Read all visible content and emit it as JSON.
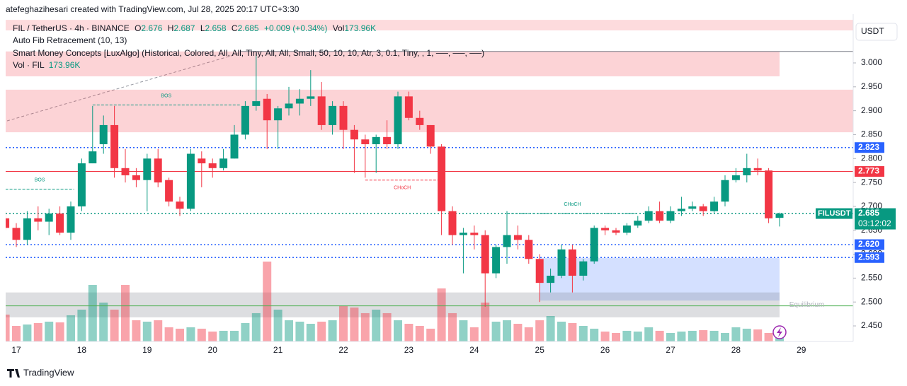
{
  "header": {
    "caption": "atefeghazihesari created with TradingView.com, Jul 28, 2025 20:17 UTC+3:30",
    "currency": "USDT",
    "footer": "TradingView"
  },
  "legend": {
    "symbol": "FIL / TetherUS · 4h · BINANCE",
    "o_label": "O",
    "h_label": "H",
    "l_label": "L",
    "c_label": "C",
    "change": "+0.009 (+0.34%)",
    "vol_label": "Vol",
    "vol_value": "173.96K",
    "indicators": [
      "Auto Fib Retracement (10, 13)",
      "Smart Money Concepts [LuxAlgo] (Historical, Colored, All, All, Tiny, All, All, Small, 50, 10, 10, Atr, 3, 0.1, Tiny, , 1, ──, ──, ──)"
    ],
    "vol_indicator": "Vol · FIL",
    "vol_indicator_value": "173.96K"
  },
  "chart_data": {
    "type": "candlestick",
    "symbol_tag": "FILUSDT",
    "countdown": "03:12:02",
    "categories": [
      null,
      "17",
      null,
      null,
      null,
      null,
      null,
      "18",
      null,
      null,
      null,
      null,
      null,
      "19",
      null,
      null,
      null,
      null,
      null,
      "20",
      null,
      null,
      null,
      null,
      null,
      "21",
      null,
      null,
      null,
      null,
      null,
      "22",
      null,
      null,
      null,
      null,
      null,
      "23",
      null,
      null,
      null,
      null,
      null,
      "24",
      null,
      null,
      null,
      null,
      null,
      "25",
      null,
      null,
      null,
      null,
      null,
      "26",
      null,
      null,
      null,
      null,
      null,
      "27",
      null,
      null,
      null,
      null,
      null,
      "28",
      null,
      null,
      null,
      null,
      null,
      "29"
    ],
    "open": [
      2.675,
      2.655,
      2.63,
      2.675,
      2.668,
      2.685,
      2.645,
      2.7,
      2.79,
      2.83,
      2.87,
      2.78,
      2.765,
      2.755,
      2.8,
      2.755,
      2.71,
      2.695,
      2.8,
      2.79,
      2.78,
      2.8,
      2.85,
      2.91,
      2.925,
      2.88,
      2.905,
      2.915,
      2.925,
      2.93,
      2.87,
      2.91,
      2.86,
      2.84,
      2.83,
      2.845,
      2.83,
      2.93,
      2.885,
      2.87,
      2.825,
      2.69,
      2.64,
      2.645,
      2.64,
      2.56,
      2.615,
      2.64,
      2.63,
      2.59,
      2.54,
      2.555,
      2.61,
      2.555,
      2.585,
      2.655,
      2.65,
      2.645,
      2.66,
      2.67,
      2.69,
      2.67,
      2.69,
      2.695,
      2.7,
      2.69,
      2.71,
      2.755,
      2.765,
      2.78,
      2.775,
      2.676,
      null,
      null
    ],
    "high": [
      2.69,
      2.665,
      2.69,
      2.7,
      2.695,
      2.7,
      2.71,
      2.8,
      2.91,
      2.89,
      2.91,
      2.82,
      2.78,
      2.81,
      2.82,
      2.76,
      2.72,
      2.82,
      2.815,
      2.8,
      2.82,
      2.87,
      2.92,
      3.02,
      2.935,
      2.91,
      2.95,
      2.945,
      2.985,
      2.96,
      2.92,
      2.92,
      2.87,
      2.85,
      2.85,
      2.88,
      2.94,
      2.94,
      2.9,
      2.87,
      2.83,
      2.7,
      2.655,
      2.66,
      2.65,
      2.62,
      2.69,
      2.66,
      2.64,
      2.6,
      2.57,
      2.62,
      2.62,
      2.59,
      2.66,
      2.66,
      2.655,
      2.665,
      2.68,
      2.7,
      2.71,
      2.7,
      2.72,
      2.71,
      2.705,
      2.72,
      2.765,
      2.78,
      2.81,
      2.8,
      2.78,
      2.687,
      null,
      null
    ],
    "low": [
      2.65,
      2.615,
      2.62,
      2.65,
      2.64,
      2.64,
      2.63,
      2.69,
      2.79,
      2.81,
      2.76,
      2.75,
      2.74,
      2.69,
      2.74,
      2.7,
      2.68,
      2.69,
      2.74,
      2.76,
      2.775,
      2.8,
      2.84,
      2.9,
      2.82,
      2.82,
      2.89,
      2.89,
      2.91,
      2.86,
      2.85,
      2.82,
      2.77,
      2.76,
      2.77,
      2.82,
      2.82,
      2.88,
      2.86,
      2.81,
      2.64,
      2.62,
      2.56,
      2.61,
      2.49,
      2.55,
      2.58,
      2.61,
      2.58,
      2.5,
      2.52,
      2.55,
      2.52,
      2.545,
      2.58,
      2.64,
      2.64,
      2.64,
      2.655,
      2.665,
      2.665,
      2.665,
      2.68,
      2.69,
      2.68,
      2.685,
      2.7,
      2.75,
      2.75,
      2.765,
      2.665,
      2.658,
      null,
      null
    ],
    "close": [
      2.655,
      2.63,
      2.675,
      2.668,
      2.685,
      2.645,
      2.7,
      2.79,
      2.815,
      2.87,
      2.78,
      2.765,
      2.755,
      2.8,
      2.75,
      2.71,
      2.695,
      2.81,
      2.79,
      2.78,
      2.8,
      2.85,
      2.91,
      2.92,
      2.88,
      2.905,
      2.915,
      2.925,
      2.93,
      2.87,
      2.91,
      2.86,
      2.84,
      2.83,
      2.845,
      2.83,
      2.93,
      2.885,
      2.87,
      2.825,
      2.69,
      2.64,
      2.645,
      2.64,
      2.56,
      2.615,
      2.64,
      2.63,
      2.59,
      2.54,
      2.555,
      2.61,
      2.555,
      2.585,
      2.655,
      2.65,
      2.645,
      2.66,
      2.67,
      2.69,
      2.67,
      2.69,
      2.695,
      2.7,
      2.69,
      2.71,
      2.755,
      2.765,
      2.78,
      2.775,
      2.675,
      2.685,
      null,
      null
    ],
    "volume": [
      328000,
      190000,
      207000,
      225000,
      242000,
      233000,
      320000,
      389000,
      691000,
      475000,
      389000,
      691000,
      259000,
      242000,
      259000,
      173000,
      156000,
      173000,
      156000,
      121000,
      130000,
      130000,
      225000,
      346000,
      976000,
      389000,
      259000,
      242000,
      216000,
      242000,
      259000,
      432000,
      415000,
      346000,
      389000,
      346000,
      259000,
      216000,
      190000,
      156000,
      648000,
      346000,
      259000,
      173000,
      475000,
      242000,
      259000,
      216000,
      173000,
      259000,
      311000,
      242000,
      225000,
      190000,
      156000,
      121000,
      104000,
      130000,
      121000,
      173000,
      130000,
      104000,
      121000,
      130000,
      138000,
      130000,
      104000,
      173000,
      156000,
      147000,
      104000,
      173960,
      null,
      null
    ],
    "ylim": [
      2.4175,
      3.102
    ],
    "volume_lim": [
      0,
      4000000
    ],
    "yticks": [
      {
        "value": 2.45,
        "label": "2.450"
      },
      {
        "value": 2.5,
        "label": "2.500"
      },
      {
        "value": 2.55,
        "label": "2.550"
      },
      {
        "value": 2.6,
        "label": "2.600"
      },
      {
        "value": 2.65,
        "label": "2.650"
      },
      {
        "value": 2.7,
        "label": "2.700"
      },
      {
        "value": 2.75,
        "label": "2.750"
      },
      {
        "value": 2.8,
        "label": "2.800"
      },
      {
        "value": 2.85,
        "label": "2.850"
      },
      {
        "value": 2.9,
        "label": "2.900"
      },
      {
        "value": 2.95,
        "label": "2.950"
      },
      {
        "value": 3.0,
        "label": "3.000"
      }
    ],
    "grid": false,
    "up_color": "#089981",
    "down_color": "#f23645",
    "volume_up_color": "rgba(8,153,129,0.45)",
    "volume_down_color": "rgba(242,54,69,0.45)",
    "zones": [
      {
        "y0": 3.068,
        "y1": 3.09,
        "x0": 0,
        "x1": 78,
        "color": "rgba(242,54,69,0.18)"
      },
      {
        "y0": 2.972,
        "y1": 3.024,
        "x0": 0,
        "x1": 71,
        "color": "rgba(242,54,69,0.22)"
      },
      {
        "y0": 2.855,
        "y1": 2.944,
        "x0": 0,
        "x1": 78,
        "color": "rgba(242,54,69,0.22)"
      },
      {
        "y0": 2.503,
        "y1": 2.592,
        "x0": 49,
        "x1": 71,
        "color": "rgba(41,98,255,0.2)"
      },
      {
        "y0": 2.468,
        "y1": 2.52,
        "x0": 0,
        "x1": 71,
        "color": "rgba(120,123,134,0.25)"
      }
    ],
    "hlines": [
      {
        "value": 2.823,
        "label": "2.823",
        "color": "#2962ff",
        "style": "dotted"
      },
      {
        "value": 2.773,
        "label": "2.773",
        "color": "#f23645",
        "style": "solid"
      },
      {
        "value": 2.62,
        "label": "2.620",
        "color": "#2962ff",
        "style": "dotted"
      },
      {
        "value": 2.593,
        "label": "2.593",
        "color": "#2962ff",
        "style": "dotted"
      },
      {
        "value": 2.685,
        "label": "2.685",
        "color": "#089981",
        "style": "dotted",
        "current": true
      },
      {
        "value": 2.492,
        "color": "#4caf50",
        "style": "solid"
      },
      {
        "value": 3.024,
        "color": "#787b86",
        "style": "solid",
        "x0": 21.5
      }
    ],
    "annotations": [
      {
        "text": "BOS",
        "x0": 8,
        "x1": 21.5,
        "y": 2.912,
        "color": "#089981",
        "placement": "above"
      },
      {
        "text": "BOS",
        "x0": 0,
        "x1": 6.3,
        "y": 2.736,
        "color": "#089981",
        "placement": "above"
      },
      {
        "text": "CHoCH",
        "x0": 33,
        "x1": 39.8,
        "y": 2.755,
        "color": "#f23645",
        "placement": "below"
      },
      {
        "text": "CHoCH",
        "x0": 46,
        "x1": 58,
        "y": 2.685,
        "color": "#089981",
        "placement": "above"
      },
      {
        "text": "Equilibrium",
        "x": 73.5,
        "y": 2.494,
        "color": "#b2b5be",
        "placement": "center"
      }
    ]
  }
}
